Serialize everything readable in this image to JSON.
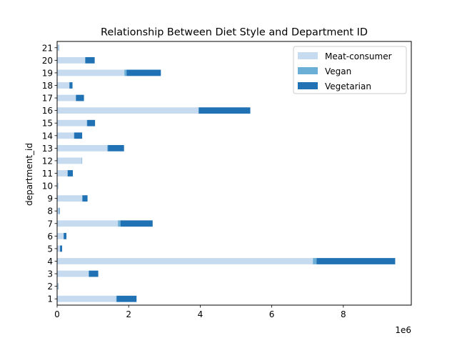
{
  "chart_data": {
    "type": "bar",
    "orientation": "horizontal",
    "stacked": true,
    "title": "Relationship Between Diet Style and Department ID",
    "xlabel": "",
    "ylabel": "department_id",
    "x_offset_label": "1e6",
    "xlim": [
      0,
      9900000
    ],
    "x_ticks": [
      0,
      2,
      4,
      6,
      8
    ],
    "x_tick_scale": 1000000,
    "grid": false,
    "legend_position": "upper-right",
    "categories": [
      "1",
      "2",
      "3",
      "4",
      "5",
      "6",
      "7",
      "8",
      "9",
      "10",
      "11",
      "12",
      "13",
      "14",
      "15",
      "16",
      "17",
      "18",
      "19",
      "20",
      "21"
    ],
    "series": [
      {
        "name": "Meat-consumer",
        "color": "#c6dbef",
        "values": [
          1650000,
          20000,
          880000,
          7150000,
          80000,
          180000,
          1700000,
          50000,
          700000,
          25000,
          290000,
          690000,
          1400000,
          470000,
          830000,
          3950000,
          520000,
          340000,
          1880000,
          780000,
          40000
        ]
      },
      {
        "name": "Vegan",
        "color": "#6baed6",
        "values": [
          15000,
          1000,
          10000,
          100000,
          2000,
          3000,
          70000,
          1000,
          10000,
          1000,
          5000,
          5000,
          20000,
          10000,
          10000,
          10000,
          10000,
          5000,
          60000,
          10000,
          1000
        ]
      },
      {
        "name": "Vegetarian",
        "color": "#2171b5",
        "values": [
          555000,
          9000,
          260000,
          2200000,
          58000,
          77000,
          900000,
          19000,
          140000,
          4000,
          145000,
          5000,
          450000,
          220000,
          220000,
          1440000,
          220000,
          85000,
          960000,
          260000,
          9000
        ]
      }
    ]
  }
}
